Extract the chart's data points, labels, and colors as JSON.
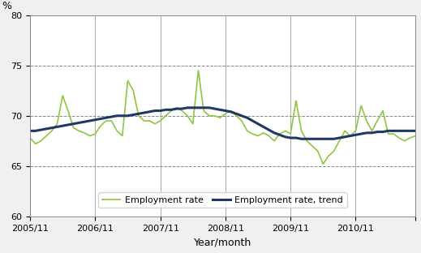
{
  "title": "",
  "ylabel": "%",
  "xlabel": "Year/month",
  "ylim": [
    60,
    80
  ],
  "yticks": [
    60,
    65,
    70,
    75,
    80
  ],
  "xlabels": [
    "2005/11",
    "2006/11",
    "2007/11",
    "2008/11",
    "2009/11",
    "2010/11"
  ],
  "employment_rate": [
    67.8,
    67.2,
    67.5,
    68.0,
    68.5,
    69.2,
    72.0,
    70.5,
    68.8,
    68.5,
    68.3,
    68.0,
    68.2,
    69.0,
    69.5,
    69.5,
    68.5,
    68.0,
    73.5,
    72.5,
    70.0,
    69.5,
    69.5,
    69.2,
    69.5,
    70.0,
    70.5,
    70.8,
    70.5,
    70.0,
    69.2,
    74.5,
    70.5,
    70.0,
    70.0,
    69.8,
    70.2,
    70.5,
    70.0,
    69.5,
    68.5,
    68.2,
    68.0,
    68.3,
    68.0,
    67.5,
    68.2,
    68.5,
    68.2,
    71.5,
    68.5,
    67.5,
    67.0,
    66.5,
    65.2,
    66.0,
    66.5,
    67.5,
    68.5,
    68.0,
    68.5,
    71.0,
    69.5,
    68.5,
    69.5,
    70.5,
    68.2,
    68.2,
    67.8,
    67.5,
    67.8,
    68.0
  ],
  "trend": [
    68.5,
    68.5,
    68.6,
    68.7,
    68.8,
    68.9,
    69.0,
    69.1,
    69.2,
    69.3,
    69.4,
    69.5,
    69.6,
    69.7,
    69.8,
    69.9,
    70.0,
    70.0,
    70.0,
    70.1,
    70.2,
    70.3,
    70.4,
    70.5,
    70.5,
    70.6,
    70.6,
    70.7,
    70.7,
    70.8,
    70.8,
    70.8,
    70.8,
    70.8,
    70.7,
    70.6,
    70.5,
    70.4,
    70.2,
    70.0,
    69.8,
    69.5,
    69.2,
    68.9,
    68.6,
    68.3,
    68.1,
    67.9,
    67.8,
    67.8,
    67.7,
    67.7,
    67.7,
    67.7,
    67.7,
    67.7,
    67.7,
    67.8,
    67.9,
    68.0,
    68.1,
    68.2,
    68.3,
    68.3,
    68.4,
    68.4,
    68.5,
    68.5,
    68.5,
    68.5,
    68.5,
    68.5
  ],
  "line_color_rate": "#8dc63f",
  "line_color_trend": "#1f3864",
  "bg_color": "#f0f0f0",
  "plot_bg": "#ffffff",
  "grid_color": "#000000",
  "legend_labels": [
    "Employment rate",
    "Employment rate, trend"
  ]
}
